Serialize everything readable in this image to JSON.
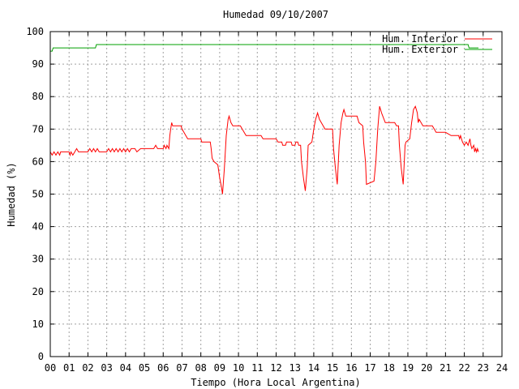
{
  "chart_data": {
    "type": "line",
    "title": "Humedad 09/10/2007",
    "xlabel": "Tiempo (Hora Local Argentina)",
    "ylabel": "Humedad (%)",
    "xlim": [
      0,
      24
    ],
    "ylim": [
      0,
      100
    ],
    "xticks": [
      "00",
      "01",
      "02",
      "03",
      "04",
      "05",
      "06",
      "07",
      "08",
      "09",
      "10",
      "11",
      "12",
      "13",
      "14",
      "15",
      "16",
      "17",
      "18",
      "19",
      "20",
      "21",
      "22",
      "23",
      "24"
    ],
    "yticks": [
      0,
      10,
      20,
      30,
      40,
      50,
      60,
      70,
      80,
      90,
      100
    ],
    "grid": true,
    "legend_position": "top-right",
    "series": [
      {
        "name": "Hum. Interior",
        "color": "#ff0000",
        "points": [
          [
            0.0,
            62
          ],
          [
            0.0,
            63
          ],
          [
            0.1,
            62
          ],
          [
            0.2,
            63
          ],
          [
            0.3,
            62
          ],
          [
            0.4,
            63
          ],
          [
            0.5,
            62
          ],
          [
            0.55,
            63
          ],
          [
            1.0,
            63
          ],
          [
            1.05,
            62
          ],
          [
            1.1,
            63
          ],
          [
            1.2,
            62
          ],
          [
            1.3,
            63
          ],
          [
            1.4,
            64
          ],
          [
            1.5,
            63
          ],
          [
            2.0,
            63
          ],
          [
            2.1,
            64
          ],
          [
            2.2,
            63
          ],
          [
            2.3,
            64
          ],
          [
            2.4,
            63
          ],
          [
            2.5,
            64
          ],
          [
            2.6,
            63
          ],
          [
            3.0,
            63
          ],
          [
            3.1,
            64
          ],
          [
            3.2,
            63
          ],
          [
            3.3,
            64
          ],
          [
            3.4,
            63
          ],
          [
            3.5,
            64
          ],
          [
            3.6,
            63
          ],
          [
            3.7,
            64
          ],
          [
            3.8,
            63
          ],
          [
            3.9,
            64
          ],
          [
            4.0,
            63
          ],
          [
            4.1,
            64
          ],
          [
            4.2,
            63
          ],
          [
            4.3,
            64
          ],
          [
            4.5,
            64
          ],
          [
            4.6,
            63
          ],
          [
            4.8,
            64
          ],
          [
            5.5,
            64
          ],
          [
            5.6,
            65
          ],
          [
            5.7,
            64
          ],
          [
            6.0,
            64
          ],
          [
            6.05,
            65
          ],
          [
            6.15,
            64
          ],
          [
            6.2,
            65
          ],
          [
            6.3,
            64
          ],
          [
            6.35,
            68
          ],
          [
            6.4,
            70
          ],
          [
            6.45,
            72
          ],
          [
            6.5,
            71
          ],
          [
            6.95,
            71
          ],
          [
            7.0,
            70
          ],
          [
            7.1,
            69
          ],
          [
            7.2,
            68
          ],
          [
            7.3,
            67
          ],
          [
            8.0,
            67
          ],
          [
            8.05,
            66
          ],
          [
            8.5,
            66
          ],
          [
            8.55,
            64
          ],
          [
            8.6,
            61
          ],
          [
            8.7,
            60
          ],
          [
            8.9,
            59
          ],
          [
            9.0,
            55
          ],
          [
            9.1,
            52
          ],
          [
            9.15,
            50
          ],
          [
            9.25,
            58
          ],
          [
            9.35,
            68
          ],
          [
            9.45,
            73
          ],
          [
            9.5,
            74
          ],
          [
            9.6,
            72
          ],
          [
            9.7,
            71
          ],
          [
            10.1,
            71
          ],
          [
            10.2,
            70
          ],
          [
            10.4,
            68
          ],
          [
            11.2,
            68
          ],
          [
            11.3,
            67
          ],
          [
            12.0,
            67
          ],
          [
            12.1,
            66
          ],
          [
            12.3,
            66
          ],
          [
            12.35,
            65
          ],
          [
            12.5,
            65
          ],
          [
            12.55,
            66
          ],
          [
            12.8,
            66
          ],
          [
            12.85,
            65
          ],
          [
            13.0,
            65
          ],
          [
            13.05,
            66
          ],
          [
            13.15,
            66
          ],
          [
            13.2,
            65
          ],
          [
            13.3,
            65
          ],
          [
            13.35,
            60
          ],
          [
            13.45,
            55
          ],
          [
            13.55,
            51
          ],
          [
            13.65,
            58
          ],
          [
            13.7,
            65
          ],
          [
            13.9,
            66
          ],
          [
            14.0,
            70
          ],
          [
            14.1,
            73
          ],
          [
            14.2,
            75
          ],
          [
            14.3,
            73
          ],
          [
            14.5,
            71
          ],
          [
            14.6,
            70
          ],
          [
            15.0,
            70
          ],
          [
            15.05,
            64
          ],
          [
            15.15,
            58
          ],
          [
            15.25,
            53
          ],
          [
            15.35,
            65
          ],
          [
            15.45,
            72
          ],
          [
            15.55,
            75
          ],
          [
            15.6,
            76
          ],
          [
            15.7,
            74
          ],
          [
            16.3,
            74
          ],
          [
            16.4,
            72
          ],
          [
            16.6,
            71
          ],
          [
            16.65,
            66
          ],
          [
            16.75,
            60
          ],
          [
            16.8,
            53
          ],
          [
            17.2,
            54
          ],
          [
            17.3,
            60
          ],
          [
            17.4,
            70
          ],
          [
            17.5,
            77
          ],
          [
            17.6,
            75
          ],
          [
            17.8,
            72
          ],
          [
            18.3,
            72
          ],
          [
            18.4,
            71
          ],
          [
            18.5,
            71
          ],
          [
            18.55,
            65
          ],
          [
            18.65,
            58
          ],
          [
            18.75,
            53
          ],
          [
            18.85,
            65
          ],
          [
            18.9,
            66
          ],
          [
            19.1,
            67
          ],
          [
            19.2,
            72
          ],
          [
            19.3,
            76
          ],
          [
            19.4,
            77
          ],
          [
            19.5,
            75
          ],
          [
            19.55,
            72
          ],
          [
            19.6,
            73
          ],
          [
            19.7,
            72
          ],
          [
            19.8,
            71
          ],
          [
            20.3,
            71
          ],
          [
            20.4,
            70
          ],
          [
            20.5,
            69
          ],
          [
            21.0,
            69
          ],
          [
            21.3,
            68
          ],
          [
            21.7,
            68
          ],
          [
            21.75,
            67
          ],
          [
            21.8,
            68
          ],
          [
            21.9,
            66
          ],
          [
            22.0,
            65
          ],
          [
            22.1,
            66
          ],
          [
            22.2,
            65
          ],
          [
            22.3,
            67
          ],
          [
            22.35,
            65
          ],
          [
            22.4,
            64
          ],
          [
            22.5,
            65
          ],
          [
            22.55,
            63
          ],
          [
            22.6,
            64
          ],
          [
            22.65,
            63
          ],
          [
            22.7,
            64
          ],
          [
            22.75,
            63
          ]
        ]
      },
      {
        "name": "Hum. Exterior",
        "color": "#00a000",
        "points": [
          [
            0.0,
            94
          ],
          [
            0.1,
            94
          ],
          [
            0.15,
            95
          ],
          [
            2.4,
            95
          ],
          [
            2.45,
            96
          ],
          [
            22.2,
            96
          ],
          [
            22.25,
            95
          ],
          [
            22.75,
            95
          ]
        ]
      }
    ]
  }
}
